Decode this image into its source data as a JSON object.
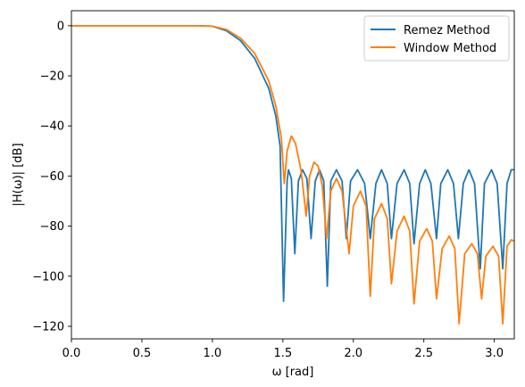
{
  "chart_data": {
    "type": "line",
    "xlabel": "ω [rad]",
    "ylabel": "|H(ω)| [dB]",
    "xlim": [
      0,
      3.14159
    ],
    "ylim": [
      -125,
      6
    ],
    "xticks": [
      0.0,
      0.5,
      1.0,
      1.5,
      2.0,
      2.5,
      3.0
    ],
    "xtick_labels": [
      "0.0",
      "0.5",
      "1.0",
      "1.5",
      "2.0",
      "2.5",
      "3.0"
    ],
    "yticks": [
      0,
      -20,
      -40,
      -60,
      -80,
      -100,
      -120
    ],
    "ytick_labels": [
      "0",
      "−20",
      "−40",
      "−60",
      "−80",
      "−100",
      "−120"
    ],
    "grid": false,
    "legend_position": "top-right",
    "series": [
      {
        "name": "Remez Method",
        "color": "#1f77b4",
        "points": [
          [
            0.0,
            0
          ],
          [
            0.6,
            0
          ],
          [
            0.9,
            0
          ],
          [
            1.0,
            -0.2
          ],
          [
            1.1,
            -2
          ],
          [
            1.2,
            -6
          ],
          [
            1.3,
            -13
          ],
          [
            1.4,
            -25
          ],
          [
            1.45,
            -36
          ],
          [
            1.48,
            -48
          ],
          [
            1.505,
            -110
          ],
          [
            1.53,
            -62
          ],
          [
            1.54,
            -57.5
          ],
          [
            1.56,
            -61
          ],
          [
            1.585,
            -91
          ],
          [
            1.61,
            -62
          ],
          [
            1.64,
            -57.5
          ],
          [
            1.67,
            -61
          ],
          [
            1.7,
            -85
          ],
          [
            1.73,
            -62
          ],
          [
            1.76,
            -57.5
          ],
          [
            1.79,
            -62
          ],
          [
            1.815,
            -104
          ],
          [
            1.84,
            -62
          ],
          [
            1.88,
            -57.5
          ],
          [
            1.92,
            -62
          ],
          [
            1.95,
            -85
          ],
          [
            1.98,
            -62
          ],
          [
            2.03,
            -57.5
          ],
          [
            2.08,
            -63
          ],
          [
            2.12,
            -85
          ],
          [
            2.16,
            -63
          ],
          [
            2.2,
            -57.5
          ],
          [
            2.24,
            -63
          ],
          [
            2.27,
            -85
          ],
          [
            2.31,
            -63
          ],
          [
            2.36,
            -57.5
          ],
          [
            2.4,
            -63
          ],
          [
            2.43,
            -87
          ],
          [
            2.47,
            -63
          ],
          [
            2.51,
            -57.5
          ],
          [
            2.55,
            -63
          ],
          [
            2.59,
            -85
          ],
          [
            2.62,
            -63
          ],
          [
            2.67,
            -57.5
          ],
          [
            2.71,
            -63
          ],
          [
            2.745,
            -85
          ],
          [
            2.78,
            -63
          ],
          [
            2.82,
            -57.5
          ],
          [
            2.86,
            -63
          ],
          [
            2.9,
            -97
          ],
          [
            2.93,
            -63
          ],
          [
            2.98,
            -57.5
          ],
          [
            3.02,
            -63
          ],
          [
            3.06,
            -97
          ],
          [
            3.09,
            -63
          ],
          [
            3.12,
            -57.5
          ],
          [
            3.14159,
            -57.5
          ]
        ]
      },
      {
        "name": "Window Method",
        "color": "#ff7f0e",
        "points": [
          [
            0.0,
            0
          ],
          [
            0.6,
            0
          ],
          [
            0.9,
            0
          ],
          [
            1.0,
            -0.2
          ],
          [
            1.1,
            -1.5
          ],
          [
            1.2,
            -5
          ],
          [
            1.3,
            -11
          ],
          [
            1.4,
            -22
          ],
          [
            1.45,
            -32
          ],
          [
            1.49,
            -45
          ],
          [
            1.51,
            -63
          ],
          [
            1.53,
            -50
          ],
          [
            1.56,
            -44
          ],
          [
            1.59,
            -47
          ],
          [
            1.63,
            -58
          ],
          [
            1.665,
            -76
          ],
          [
            1.69,
            -60
          ],
          [
            1.72,
            -54.5
          ],
          [
            1.75,
            -56
          ],
          [
            1.78,
            -64
          ],
          [
            1.81,
            -85
          ],
          [
            1.84,
            -66
          ],
          [
            1.88,
            -61
          ],
          [
            1.92,
            -66
          ],
          [
            1.97,
            -91
          ],
          [
            2.0,
            -72
          ],
          [
            2.05,
            -66
          ],
          [
            2.09,
            -72
          ],
          [
            2.12,
            -108
          ],
          [
            2.15,
            -77
          ],
          [
            2.2,
            -71
          ],
          [
            2.24,
            -77
          ],
          [
            2.27,
            -103
          ],
          [
            2.31,
            -82
          ],
          [
            2.36,
            -76
          ],
          [
            2.4,
            -82
          ],
          [
            2.43,
            -111
          ],
          [
            2.47,
            -86
          ],
          [
            2.52,
            -81
          ],
          [
            2.56,
            -86
          ],
          [
            2.59,
            -109
          ],
          [
            2.63,
            -89
          ],
          [
            2.68,
            -84
          ],
          [
            2.72,
            -89
          ],
          [
            2.75,
            -119
          ],
          [
            2.79,
            -91
          ],
          [
            2.84,
            -87
          ],
          [
            2.88,
            -91
          ],
          [
            2.91,
            -109
          ],
          [
            2.94,
            -92
          ],
          [
            2.99,
            -88
          ],
          [
            3.03,
            -92
          ],
          [
            3.06,
            -119
          ],
          [
            3.09,
            -88
          ],
          [
            3.12,
            -85.5
          ],
          [
            3.14159,
            -86
          ]
        ]
      }
    ]
  }
}
